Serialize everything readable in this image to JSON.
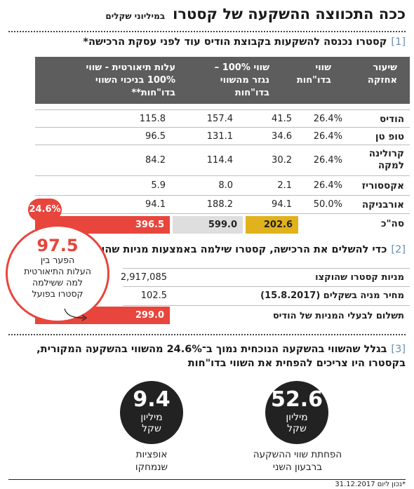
{
  "title": {
    "main": "ככה התכווצה ההשקעה של קסטרו",
    "unit": "במיליוני שקלים"
  },
  "section1": {
    "number": "1",
    "heading": "קסטרו נכנסה להשקעות בקבוצת הודיס עוד לפני עסקת הרכישה*",
    "columns": [
      [
        "שיעור",
        "אחזקה"
      ],
      [
        "שווי",
        "בדו\"חות"
      ],
      [
        "שווי 100% –",
        "נגזר מהשווי",
        "בדו\"חות"
      ],
      [
        "עלות תיאורטית - שווי",
        "100% בניכוי השווי",
        "בדו\"חות**"
      ]
    ],
    "rows": [
      {
        "label": [
          "הודיס"
        ],
        "holding": "26.4%",
        "reported": "41.5",
        "full": "157.4",
        "theoretical": "115.8"
      },
      {
        "label": [
          "טופ טן"
        ],
        "holding": "26.4%",
        "reported": "34.6",
        "full": "131.1",
        "theoretical": "96.5"
      },
      {
        "label": [
          "קרולינה",
          "למקה"
        ],
        "holding": "26.4%",
        "reported": "30.2",
        "full": "114.4",
        "theoretical": "84.2"
      },
      {
        "label": [
          "אקססוריז"
        ],
        "holding": "26.4%",
        "reported": "2.1",
        "full": "8.0",
        "theoretical": "5.9"
      },
      {
        "label": [
          "אורבניקה"
        ],
        "holding": "50.0%",
        "reported": "94.1",
        "full": "188.2",
        "theoretical": "94.1"
      }
    ],
    "total": {
      "label": "סה\"כ",
      "reported": "202.6",
      "full": "599.0",
      "theoretical": "396.5"
    },
    "badge": "24.6%"
  },
  "section2": {
    "number": "2",
    "heading": "כדי להשלים את הרכישה, קסטרו שילמה באמצעות מניות שהוקצו",
    "rows": [
      {
        "label": "מניות קסטרו שהוקצו",
        "value": "2,917,085"
      },
      {
        "label": "מחיר מניה בשקלים (15.8.2017)",
        "value": "102.5"
      },
      {
        "label": "תשלום לבעלי המניות של הודיס",
        "value": "299.0"
      }
    ],
    "bubble": {
      "value": "97.5",
      "lines": [
        "הפער בין",
        "העלות התיאורטית",
        "למה ששילמה",
        "קסטרו בפועל"
      ]
    }
  },
  "section3": {
    "number": "3",
    "lines": [
      "בגלל שהשווי בהשקעה הנוכחית נמוך ב־24.6% מהשווי בהשקעה המקורית,",
      "בקסטרו היו צריכים להפחית את השווי בדו\"חות"
    ],
    "circles": [
      {
        "value": "52.6",
        "unit": [
          "מיליון",
          "שקל"
        ],
        "caption": [
          "הפחתת שווי ההשקעה",
          "ברבעון השני"
        ]
      },
      {
        "value": "9.4",
        "unit": [
          "מיליון",
          "שקל"
        ],
        "caption": [
          "אופציות",
          "שנמחקו"
        ]
      }
    ]
  },
  "footnote": "*נכון ליום 31.12.2017",
  "colors": {
    "header": "#5d5d5d",
    "red": "#e8453c",
    "yellow": "#e1b21d",
    "gray": "#dedede",
    "accent": "#6a8fb0"
  },
  "chart_data": {
    "type": "table",
    "title": "ככה התכווצה ההשקעה של קסטרו",
    "subtitle": "במיליוני שקלים",
    "columns": [
      "שיעור אחזקה",
      "שווי בדו\"חות",
      "שווי 100% – נגזר מהשווי בדו\"חות",
      "עלות תיאורטית - שווי 100% בניכוי השווי בדו\"חות**"
    ],
    "rows": [
      "הודיס",
      "טופ טן",
      "קרולינה למקה",
      "אקססוריז",
      "אורבניקה",
      "סה\"כ"
    ],
    "values": [
      [
        26.4,
        41.5,
        157.4,
        115.8
      ],
      [
        26.4,
        34.6,
        131.1,
        96.5
      ],
      [
        26.4,
        30.2,
        114.4,
        84.2
      ],
      [
        26.4,
        2.1,
        8.0,
        5.9
      ],
      [
        50.0,
        94.1,
        188.2,
        94.1
      ],
      [
        null,
        202.6,
        599.0,
        396.5
      ]
    ]
  }
}
